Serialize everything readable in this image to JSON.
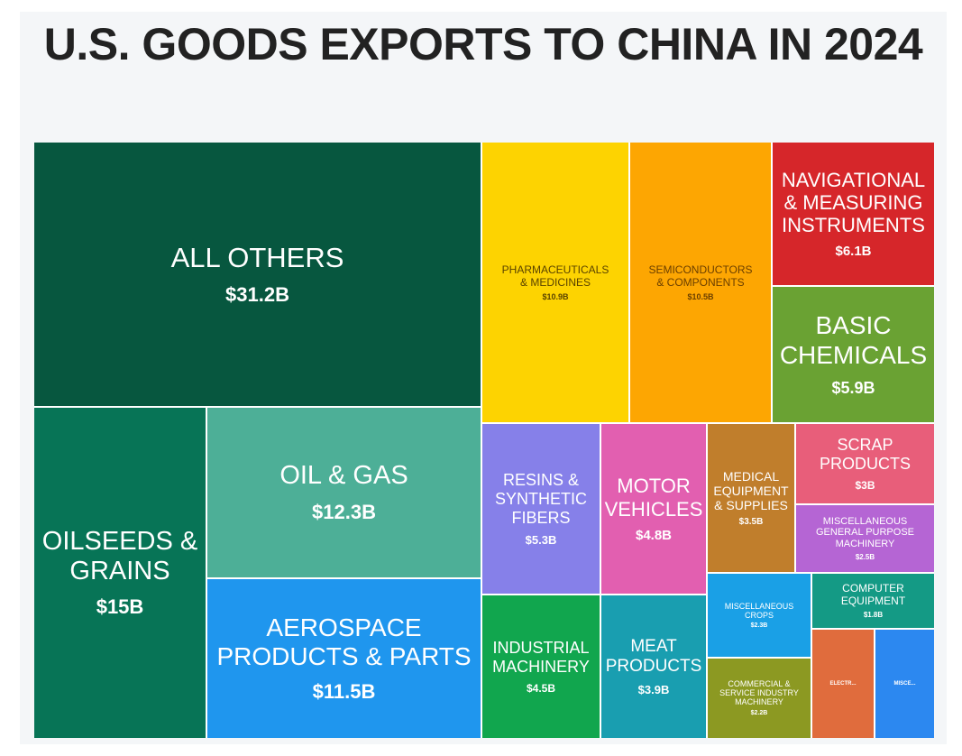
{
  "title": "U.S. GOODS EXPORTS TO CHINA IN 2024",
  "colors": {
    "all_others": "#07573f",
    "oilseeds": "#077456",
    "oil_gas": "#4daf97",
    "aerospace": "#1f96ee",
    "pharma": "#fdd301",
    "semis": "#fda602",
    "navigational": "#d6262a",
    "basic_chem": "#6aa233",
    "resins": "#8680e9",
    "motor": "#e25fb0",
    "medical": "#c07e2c",
    "scrap": "#e85e7a",
    "misc_gp": "#b565d4",
    "industrial": "#11a64e",
    "meat": "#199eb0",
    "misc_crops": "#1aa0e6",
    "computer": "#149a85",
    "commercial": "#8c9922",
    "electr": "#e06c3d",
    "misce": "#2c88f0"
  },
  "chart_data": {
    "type": "treemap",
    "title": "U.S. GOODS EXPORTS TO CHINA IN 2024",
    "unit": "USD",
    "items": [
      {
        "id": "all_others",
        "label": "ALL OTHERS",
        "value_label": "$31.2B",
        "value": 31.2
      },
      {
        "id": "oilseeds",
        "label": "OILSEEDS &\nGRAINS",
        "value_label": "$15B",
        "value": 15
      },
      {
        "id": "oil_gas",
        "label": "OIL & GAS",
        "value_label": "$12.3B",
        "value": 12.3
      },
      {
        "id": "aerospace",
        "label": "AEROSPACE\nPRODUCTS & PARTS",
        "value_label": "$11.5B",
        "value": 11.5
      },
      {
        "id": "pharma",
        "label": "PHARMACEUTICALS\n& MEDICINES",
        "value_label": "$10.9B",
        "value": 10.9
      },
      {
        "id": "semis",
        "label": "SEMICONDUCTORS\n& COMPONENTS",
        "value_label": "$10.5B",
        "value": 10.5
      },
      {
        "id": "navigational",
        "label": "NAVIGATIONAL\n& MEASURING\nINSTRUMENTS",
        "value_label": "$6.1B",
        "value": 6.1
      },
      {
        "id": "basic_chem",
        "label": "BASIC\nCHEMICALS",
        "value_label": "$5.9B",
        "value": 5.9
      },
      {
        "id": "resins",
        "label": "RESINS &\nSYNTHETIC\nFIBERS",
        "value_label": "$5.3B",
        "value": 5.3
      },
      {
        "id": "motor",
        "label": "MOTOR\nVEHICLES",
        "value_label": "$4.8B",
        "value": 4.8
      },
      {
        "id": "medical",
        "label": "MEDICAL\nEQUIPMENT\n& SUPPLIES",
        "value_label": "$3.5B",
        "value": 3.5
      },
      {
        "id": "scrap",
        "label": "SCRAP\nPRODUCTS",
        "value_label": "$3B",
        "value": 3
      },
      {
        "id": "misc_gp",
        "label": "MISCELLANEOUS\nGENERAL PURPOSE\nMACHINERY",
        "value_label": "$2.5B",
        "value": 2.5
      },
      {
        "id": "industrial",
        "label": "INDUSTRIAL\nMACHINERY",
        "value_label": "$4.5B",
        "value": 4.5
      },
      {
        "id": "meat",
        "label": "MEAT\nPRODUCTS",
        "value_label": "$3.9B",
        "value": 3.9
      },
      {
        "id": "misc_crops",
        "label": "MISCELLANEOUS\nCROPS",
        "value_label": "$2.3B",
        "value": 2.3
      },
      {
        "id": "computer",
        "label": "COMPUTER\nEQUIPMENT",
        "value_label": "$1.8B",
        "value": 1.8
      },
      {
        "id": "commercial",
        "label": "COMMERCIAL &\nSERVICE INDUSTRY\nMACHINERY",
        "value_label": "$2.2B",
        "value": 2.2
      },
      {
        "id": "electr",
        "label": "ELECTR...",
        "value_label": "",
        "value": null
      },
      {
        "id": "misce",
        "label": "MISCE...",
        "value_label": "",
        "value": null
      }
    ]
  }
}
